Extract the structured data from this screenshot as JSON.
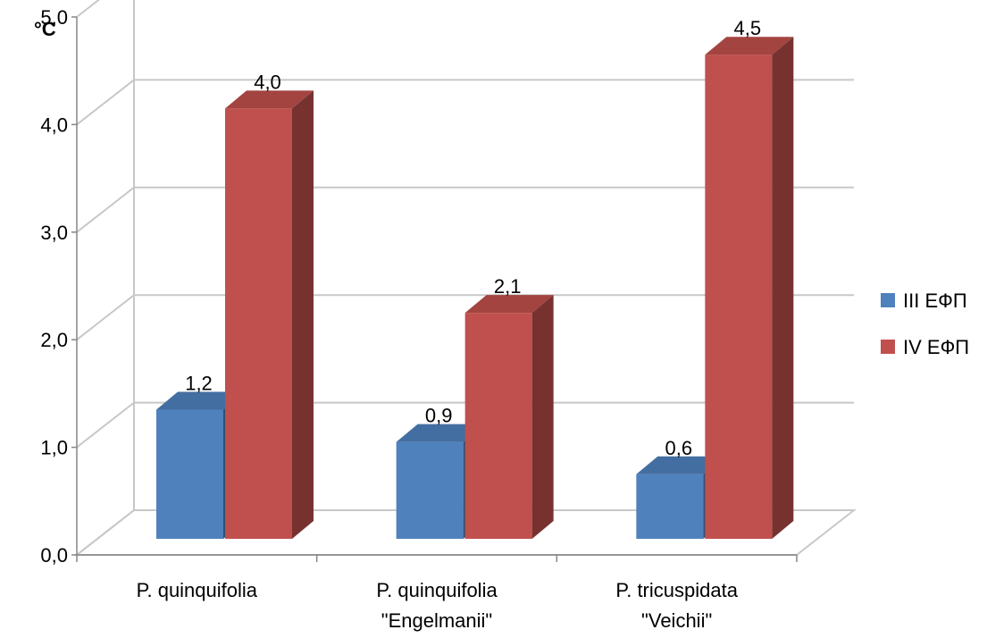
{
  "chart_data": {
    "type": "bar",
    "unit_label": "°C",
    "categories": [
      [
        "P. quinquifolia"
      ],
      [
        "P. quinquifolia",
        "\"Engelmanii\""
      ],
      [
        "P. tricuspidata",
        "\"Veichii\""
      ]
    ],
    "series": [
      {
        "name": "III ЕФП",
        "values": [
          1.2,
          0.9,
          0.6
        ],
        "labels": [
          "1,2",
          "0,9",
          "0,6"
        ],
        "color": "#4f81bd"
      },
      {
        "name": "IV ЕФП",
        "values": [
          4.0,
          2.1,
          4.5
        ],
        "labels": [
          "4,0",
          "2,1",
          "4,5"
        ],
        "color": "#c0504d"
      }
    ],
    "y_ticks": [
      "0,0",
      "1,0",
      "2,0",
      "3,0",
      "4,0",
      "5,0"
    ],
    "ylim": [
      0,
      5
    ],
    "grid": true,
    "legend_position": "right",
    "style": "3d-column"
  }
}
